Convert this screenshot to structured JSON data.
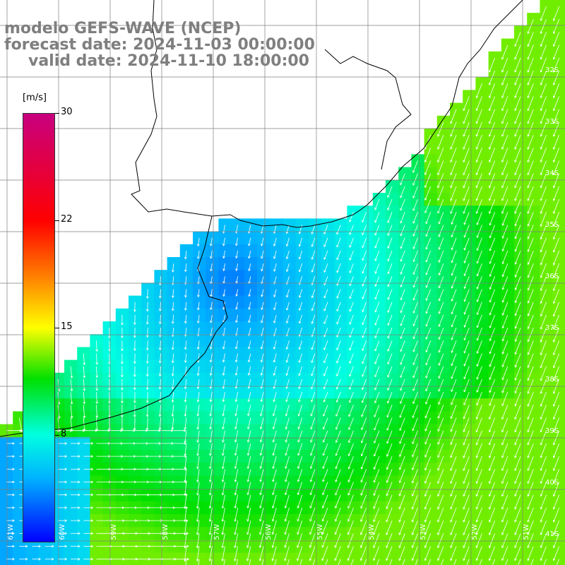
{
  "title": {
    "model": "modelo GEFS-WAVE (NCEP)",
    "forecast": "forecast date: 2024-11-03 00:00:00",
    "valid": "valid date: 2024-11-10 18:00:00"
  },
  "colorbar": {
    "unit": "[m/s]",
    "ticks": [
      "30",
      "22",
      "15",
      "8"
    ],
    "tick_values": [
      30,
      22,
      15,
      8
    ],
    "range": [
      0,
      30
    ],
    "colors": [
      "#0000ff",
      "#00b4ff",
      "#00ffe0",
      "#00e000",
      "#ffff00",
      "#ff7f00",
      "#ff0000",
      "#c8007f"
    ]
  },
  "grid": {
    "lat_labels": [
      "32S",
      "33S",
      "34S",
      "35S",
      "36S",
      "37S",
      "38S",
      "39S",
      "40S",
      "41S"
    ],
    "lon_labels": [
      "61W",
      "60W",
      "59W",
      "58W",
      "57W",
      "56W",
      "55W",
      "54W",
      "53W",
      "52W",
      "51W"
    ]
  },
  "colors": {
    "land": "#ffffff",
    "grid_line": "#7f7f7f",
    "coast": "#000000",
    "arrow": "#ffffff"
  }
}
